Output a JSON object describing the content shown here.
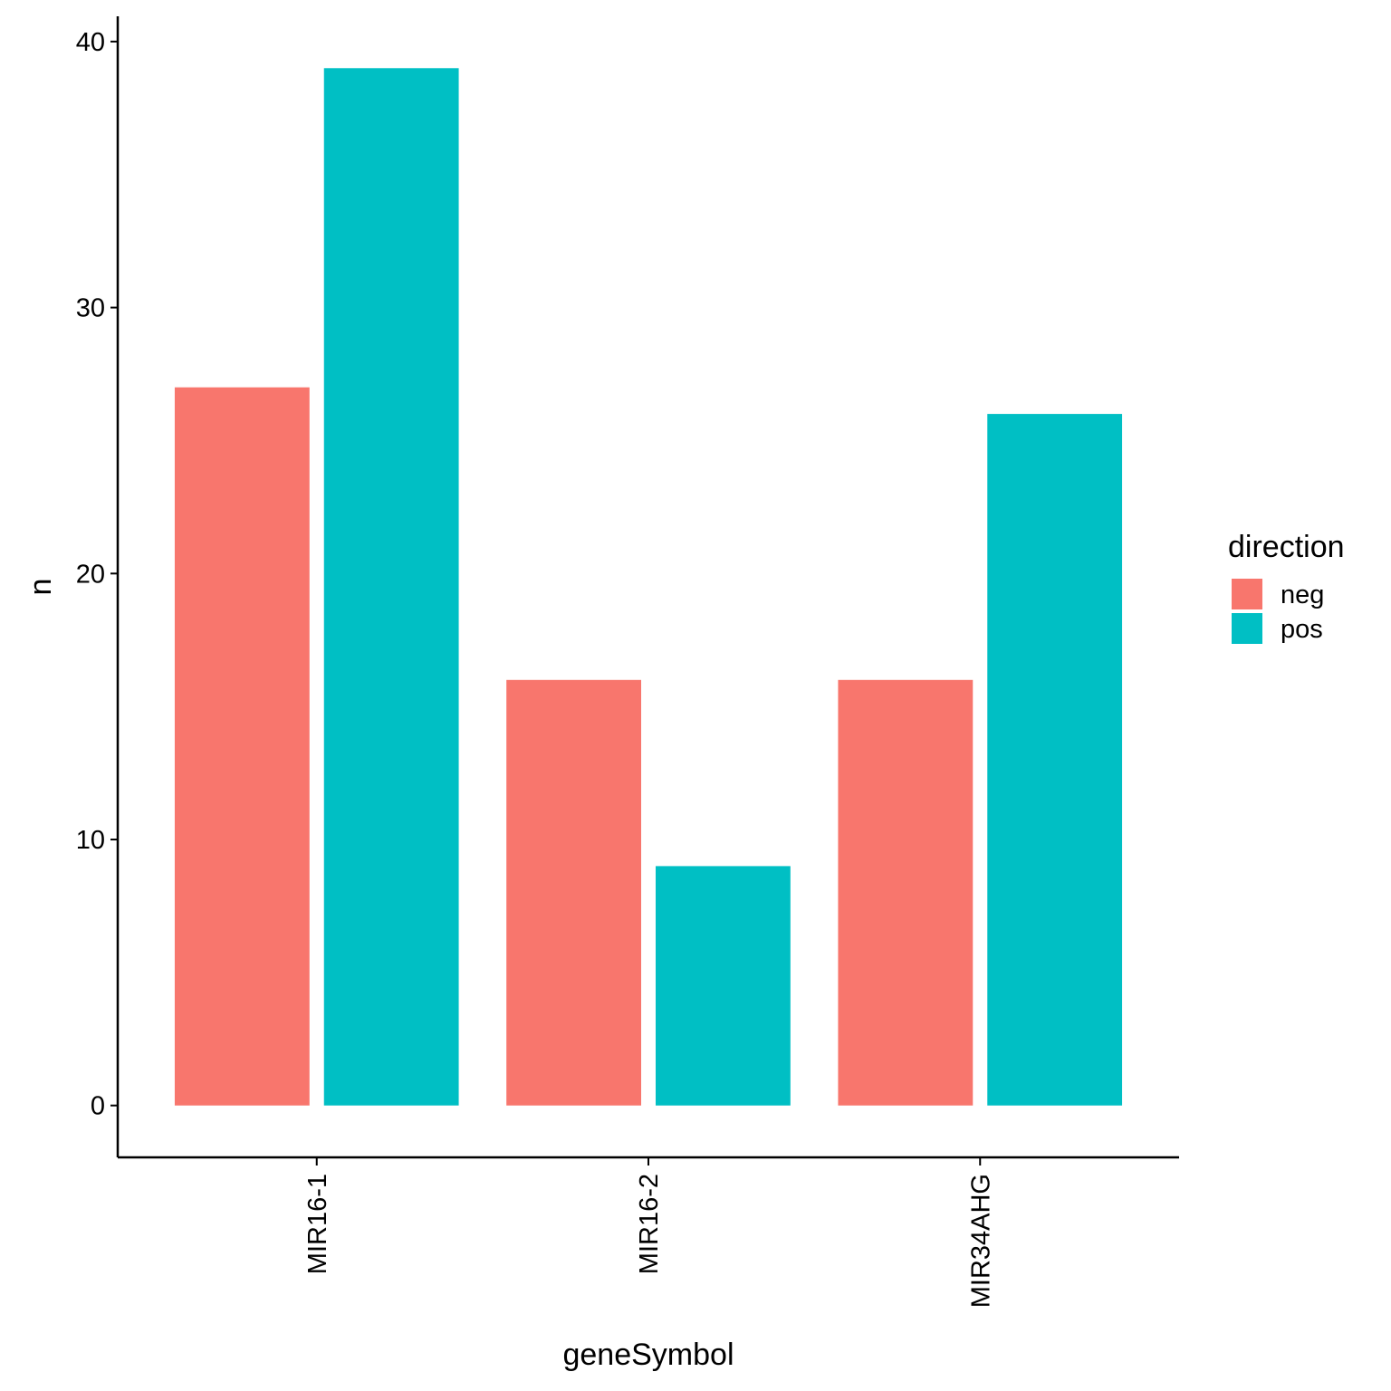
{
  "chart_data": {
    "type": "bar",
    "xlabel": "geneSymbol",
    "ylabel": "n",
    "categories": [
      "MIR16-1",
      "MIR16-2",
      "MIR34AHG"
    ],
    "series": [
      {
        "name": "neg",
        "color": "#F8766D",
        "values": [
          27,
          16,
          16
        ]
      },
      {
        "name": "pos",
        "color": "#00BFC4",
        "values": [
          39,
          9,
          26
        ]
      }
    ],
    "ylim": [
      -1.95,
      40.95
    ],
    "yticks": [
      0,
      10,
      20,
      30,
      40
    ],
    "grid": false,
    "legend": {
      "title": "direction",
      "position": "right"
    }
  }
}
